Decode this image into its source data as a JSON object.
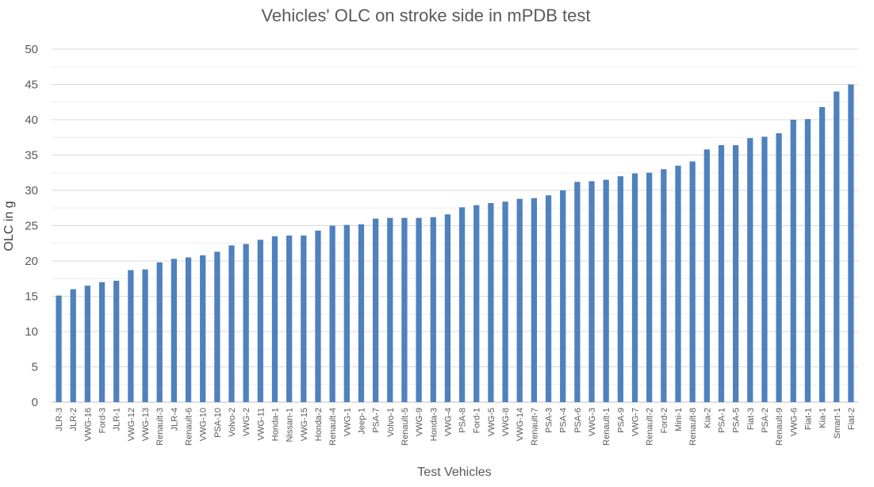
{
  "chart_data": {
    "type": "bar",
    "title": "Vehicles' OLC on stroke side in mPDB test",
    "xlabel": "Test Vehicles",
    "ylabel": "OLC in g",
    "ylim": [
      0,
      50
    ],
    "yticks": [
      0,
      5,
      10,
      15,
      20,
      25,
      30,
      35,
      40,
      45,
      50
    ],
    "grid": true,
    "legend": "none",
    "bar_color": "#4f81bd",
    "categories": [
      "JLR-3",
      "JLR-2",
      "VWG-16",
      "Ford-3",
      "JLR-1",
      "VWG-12",
      "VWG-13",
      "Renault-3",
      "JLR-4",
      "Renault-6",
      "VWG-10",
      "PSA-10",
      "Volvo-2",
      "VWG-2",
      "VWG-11",
      "Honda-1",
      "Nissan-1",
      "VWG-15",
      "Honda-2",
      "Renault-4",
      "VWG-1",
      "Jeep-1",
      "PSA-7",
      "Volvo-1",
      "Renault-5",
      "VWG-9",
      "Honda-3",
      "VWG-4",
      "PSA-8",
      "Ford-1",
      "VWG-5",
      "VWG-8",
      "VWG-14",
      "Renault-7",
      "PSA-3",
      "PSA-4",
      "PSA-6",
      "VWG-3",
      "Renault-1",
      "PSA-9",
      "VWG-7",
      "Renault-2",
      "Ford-2",
      "Mini-1",
      "Renault-8",
      "Kia-2",
      "PSA-1",
      "PSA-5",
      "Fiat-3",
      "PSA-2",
      "Renault-9",
      "VWG-6",
      "Fiat-1",
      "Kia-1",
      "Smart-1",
      "Fiat-2"
    ],
    "values": [
      15.1,
      16.0,
      16.5,
      17.0,
      17.2,
      18.7,
      18.8,
      19.8,
      20.3,
      20.5,
      20.8,
      21.3,
      22.2,
      22.4,
      23.0,
      23.5,
      23.6,
      23.6,
      24.3,
      25.0,
      25.1,
      25.2,
      26.0,
      26.1,
      26.1,
      26.1,
      26.2,
      26.6,
      27.6,
      27.9,
      28.2,
      28.4,
      28.8,
      28.9,
      29.3,
      30.0,
      31.2,
      31.3,
      31.5,
      32.0,
      32.4,
      32.5,
      33.0,
      33.5,
      34.1,
      35.8,
      36.4,
      36.4,
      37.4,
      37.6,
      38.1,
      40.0,
      40.1,
      41.8,
      44.0,
      45.0
    ]
  }
}
